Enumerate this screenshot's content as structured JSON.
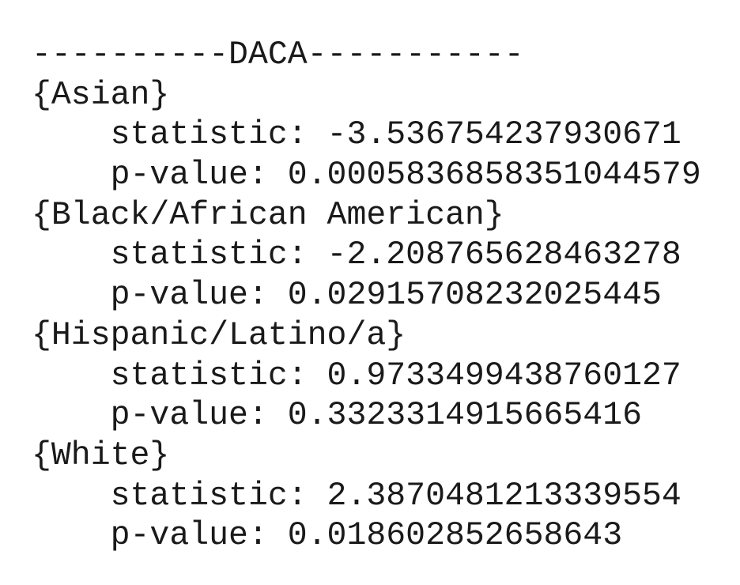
{
  "header": "----------DACA-----------",
  "statistic_label": "statistic:",
  "p_value_label": "p-value:",
  "groups": [
    {
      "name": "{Asian}",
      "statistic": "-3.536754237930671",
      "p_value": "0.0005836858351044579"
    },
    {
      "name": "{Black/African American}",
      "statistic": "-2.208765628463278",
      "p_value": "0.02915708232025445"
    },
    {
      "name": "{Hispanic/Latino/a}",
      "statistic": "0.9733499438760127",
      "p_value": "0.3323314915665416"
    },
    {
      "name": "{White}",
      "statistic": "2.3870481213339554",
      "p_value": "0.018602852658643"
    }
  ]
}
